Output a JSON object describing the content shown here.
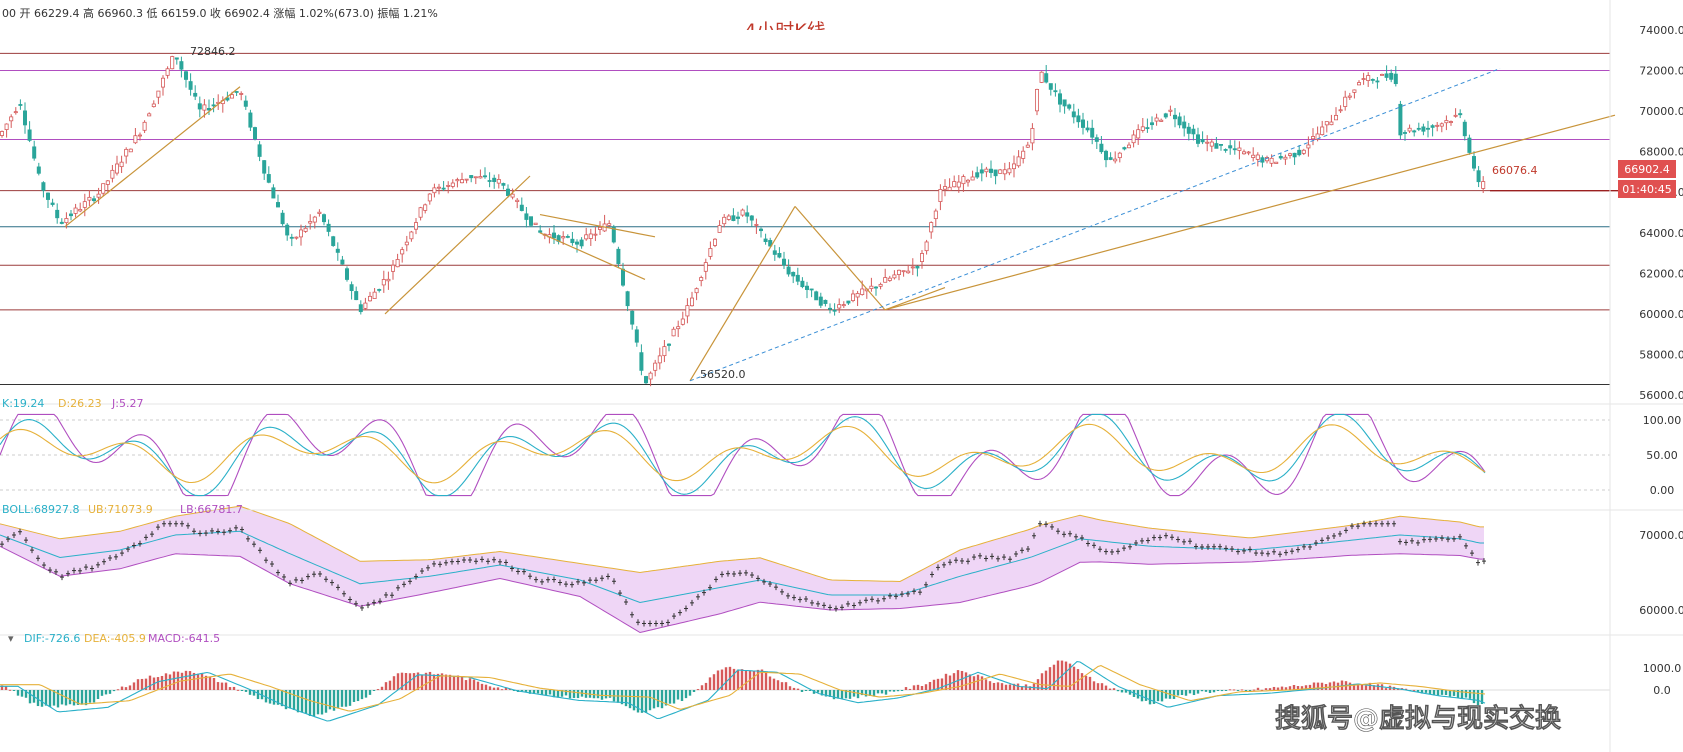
{
  "header": {
    "ohlc_text": "00  开 66229.4  高 66960.3  低 66159.0  收 66902.4  涨幅 1.02%(673.0)  振幅 1.21%"
  },
  "title": "4小时K线",
  "watermark": "搜狐号@虚拟与现实交换",
  "colors": {
    "up": "#d65a5a",
    "down": "#2aa59a",
    "trendline": "#c8943a",
    "dashed": "#3b8fd6",
    "kdj_k": "#2ab0c8",
    "kdj_d": "#e6b13a",
    "kdj_j": "#b04ec0",
    "boll_fill": "#efd6f6",
    "macd_dif": "#2ab0c8",
    "macd_dea": "#e6b13a",
    "price_badge": "#e05050"
  },
  "price_panel": {
    "high_marker": "72846.2",
    "low_marker": "56520.0",
    "level_marker": "66076.4",
    "current_price_badge": "66902.4",
    "countdown_badge": "01:40:45",
    "y_ticks": [
      "74000.0",
      "72000.0",
      "70000.0",
      "68000.0",
      "66000.0",
      "64000.0",
      "62000.0",
      "60000.0",
      "58000.0",
      "56000.0"
    ]
  },
  "kdj_panel": {
    "legend_k": "K:19.24",
    "legend_d": "D:26.23",
    "legend_j": "J:5.27",
    "y_ticks": [
      "100.00",
      "50.00",
      "0.00"
    ]
  },
  "boll_panel": {
    "legend_boll": "BOLL:68927.8",
    "legend_ub": "UB:71073.9",
    "legend_lb": "LB:66781.7",
    "y_ticks": [
      "70000.0",
      "60000.0"
    ]
  },
  "macd_panel": {
    "legend_dif": "DIF:-726.6",
    "legend_dea": "DEA:-405.9",
    "legend_macd": "MACD:-641.5",
    "y_ticks": [
      "1000.0",
      "0.0"
    ]
  },
  "chart_data": {
    "type": "candlestick",
    "title": "4小时K线",
    "last_bar": {
      "open": 66229.4,
      "high": 66960.3,
      "low": 66159.0,
      "close": 66902.4,
      "change_pct": 1.02,
      "change": 673.0,
      "amplitude_pct": 1.21
    },
    "price_ylim": [
      56000,
      74000
    ],
    "horizontal_levels": [
      72846.2,
      72000,
      68600,
      66076.4,
      64300,
      62400,
      60200,
      56520.0
    ],
    "price_path": [
      [
        0,
        68800
      ],
      [
        20,
        70500
      ],
      [
        40,
        66500
      ],
      [
        60,
        64500
      ],
      [
        100,
        66000
      ],
      [
        140,
        69000
      ],
      [
        175,
        72846.2
      ],
      [
        200,
        70000
      ],
      [
        240,
        71000
      ],
      [
        265,
        67000
      ],
      [
        290,
        63500
      ],
      [
        320,
        65000
      ],
      [
        360,
        60200
      ],
      [
        390,
        62000
      ],
      [
        430,
        66000
      ],
      [
        470,
        66800
      ],
      [
        500,
        66500
      ],
      [
        540,
        64000
      ],
      [
        580,
        63500
      ],
      [
        610,
        64500
      ],
      [
        630,
        60000
      ],
      [
        645,
        56520
      ],
      [
        690,
        60500
      ],
      [
        720,
        64500
      ],
      [
        745,
        65000
      ],
      [
        790,
        62000
      ],
      [
        830,
        60200
      ],
      [
        880,
        61500
      ],
      [
        920,
        62500
      ],
      [
        940,
        66000
      ],
      [
        980,
        67000
      ],
      [
        1010,
        67000
      ],
      [
        1030,
        68500
      ],
      [
        1040,
        72000
      ],
      [
        1060,
        70500
      ],
      [
        1090,
        69000
      ],
      [
        1110,
        67500
      ],
      [
        1140,
        69000
      ],
      [
        1170,
        70000
      ],
      [
        1200,
        68500
      ],
      [
        1240,
        68000
      ],
      [
        1270,
        67500
      ],
      [
        1300,
        68000
      ],
      [
        1330,
        69500
      ],
      [
        1360,
        71500
      ],
      [
        1395,
        71800
      ],
      [
        1400,
        69000
      ],
      [
        1430,
        69200
      ],
      [
        1460,
        69800
      ],
      [
        1470,
        68000
      ],
      [
        1480,
        66076.4
      ],
      [
        1485,
        66902.4
      ]
    ],
    "kdj_ylim": [
      0,
      100
    ],
    "boll_ylim": [
      58000,
      72000
    ],
    "boll_mid_path": [
      [
        0,
        70000
      ],
      [
        60,
        67000
      ],
      [
        120,
        68000
      ],
      [
        175,
        70000
      ],
      [
        240,
        70500
      ],
      [
        290,
        67500
      ],
      [
        360,
        63500
      ],
      [
        430,
        64500
      ],
      [
        500,
        66000
      ],
      [
        580,
        64000
      ],
      [
        640,
        61000
      ],
      [
        700,
        62500
      ],
      [
        760,
        64000
      ],
      [
        830,
        62000
      ],
      [
        900,
        62000
      ],
      [
        960,
        64500
      ],
      [
        1030,
        67000
      ],
      [
        1080,
        69500
      ],
      [
        1150,
        68500
      ],
      [
        1250,
        68000
      ],
      [
        1330,
        69000
      ],
      [
        1400,
        70000
      ],
      [
        1460,
        69500
      ],
      [
        1480,
        68927.8
      ]
    ],
    "boll_width_path": [
      [
        0,
        1500
      ],
      [
        60,
        2500
      ],
      [
        175,
        2500
      ],
      [
        290,
        4000
      ],
      [
        360,
        3000
      ],
      [
        430,
        2200
      ],
      [
        500,
        1800
      ],
      [
        580,
        2200
      ],
      [
        640,
        4000
      ],
      [
        720,
        3500
      ],
      [
        830,
        2000
      ],
      [
        900,
        1800
      ],
      [
        960,
        3500
      ],
      [
        1040,
        3800
      ],
      [
        1100,
        2800
      ],
      [
        1250,
        1600
      ],
      [
        1350,
        2000
      ],
      [
        1400,
        2500
      ],
      [
        1480,
        2146
      ]
    ],
    "macd_ylim": [
      -1800,
      1800
    ],
    "macd_path": [
      [
        0,
        300
      ],
      [
        40,
        -800
      ],
      [
        90,
        -600
      ],
      [
        140,
        500
      ],
      [
        190,
        900
      ],
      [
        230,
        200
      ],
      [
        270,
        -600
      ],
      [
        310,
        -1200
      ],
      [
        360,
        -500
      ],
      [
        400,
        800
      ],
      [
        450,
        700
      ],
      [
        500,
        100
      ],
      [
        560,
        -300
      ],
      [
        610,
        -400
      ],
      [
        640,
        -1100
      ],
      [
        690,
        -300
      ],
      [
        720,
        1000
      ],
      [
        760,
        900
      ],
      [
        800,
        0
      ],
      [
        840,
        -400
      ],
      [
        880,
        -200
      ],
      [
        920,
        200
      ],
      [
        960,
        900
      ],
      [
        1000,
        300
      ],
      [
        1030,
        200
      ],
      [
        1060,
        1400
      ],
      [
        1100,
        300
      ],
      [
        1150,
        -600
      ],
      [
        1200,
        -100
      ],
      [
        1250,
        0
      ],
      [
        1300,
        200
      ],
      [
        1340,
        400
      ],
      [
        1380,
        200
      ],
      [
        1420,
        -100
      ],
      [
        1460,
        -300
      ],
      [
        1485,
        -726.6
      ]
    ]
  }
}
